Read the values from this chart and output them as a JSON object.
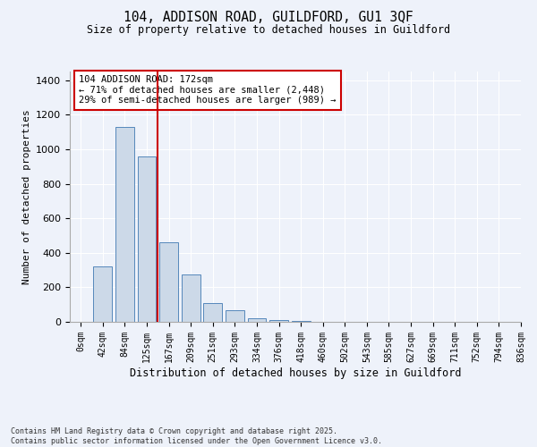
{
  "title_line1": "104, ADDISON ROAD, GUILDFORD, GU1 3QF",
  "title_line2": "Size of property relative to detached houses in Guildford",
  "xlabel": "Distribution of detached houses by size in Guildford",
  "ylabel": "Number of detached properties",
  "annotation_line1": "104 ADDISON ROAD: 172sqm",
  "annotation_line2": "← 71% of detached houses are smaller (2,448)",
  "annotation_line3": "29% of semi-detached houses are larger (989) →",
  "footer_line1": "Contains HM Land Registry data © Crown copyright and database right 2025.",
  "footer_line2": "Contains public sector information licensed under the Open Government Licence v3.0.",
  "bar_color": "#ccd9e8",
  "bar_edge_color": "#5588bb",
  "highlight_color": "#cc0000",
  "background_color": "#eef2fa",
  "annotation_box_color": "#ffffff",
  "annotation_box_edge": "#cc0000",
  "grid_color": "#ffffff",
  "bins": [
    "0sqm",
    "42sqm",
    "84sqm",
    "125sqm",
    "167sqm",
    "209sqm",
    "251sqm",
    "293sqm",
    "334sqm",
    "376sqm",
    "418sqm",
    "460sqm",
    "502sqm",
    "543sqm",
    "585sqm",
    "627sqm",
    "669sqm",
    "711sqm",
    "752sqm",
    "794sqm",
    "836sqm"
  ],
  "values": [
    0,
    320,
    1130,
    960,
    460,
    275,
    110,
    65,
    20,
    8,
    4,
    2,
    1,
    1,
    0,
    0,
    0,
    0,
    0,
    0
  ],
  "vline_x": 3.5,
  "ylim": [
    0,
    1450
  ],
  "yticks": [
    0,
    200,
    400,
    600,
    800,
    1000,
    1200,
    1400
  ]
}
